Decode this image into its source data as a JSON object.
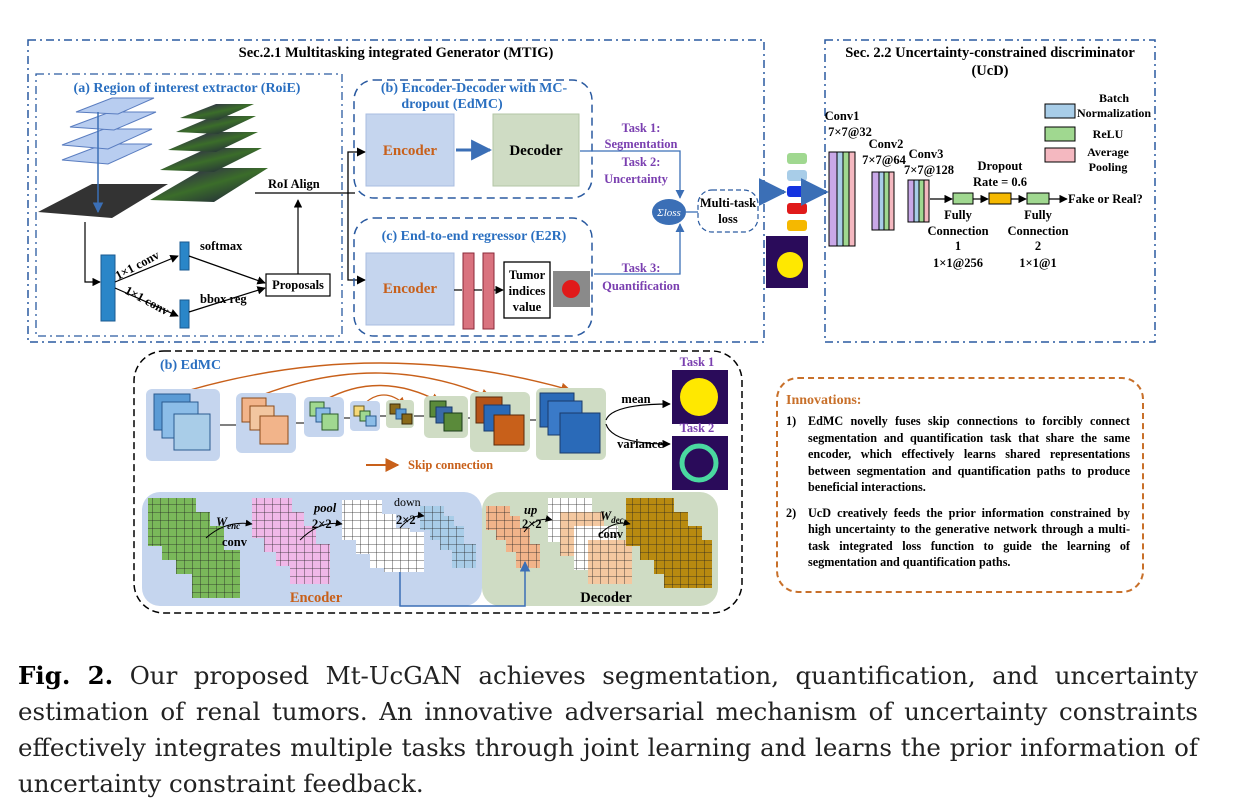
{
  "mtig": {
    "title": "Sec.2.1 Multitasking integrated Generator (MTIG)",
    "roie_title": "(a) Region of interest extractor (RoiE)",
    "roi_align": "RoI Align",
    "conv_top": "1×1 conv",
    "conv_bottom": "1×1 conv",
    "softmax": "softmax",
    "bbox_reg": "bbox reg",
    "proposals": "Proposals",
    "edmc_title_line1": "(b) Encoder-Decoder with MC-",
    "edmc_title_line2": "dropout (EdMC)",
    "encoder": "Encoder",
    "decoder": "Decoder",
    "task1": "Task 1:",
    "segmentation": "Segmentation",
    "task2": "Task 2:",
    "uncertainty": "Uncertainty",
    "e2r_title": "(c) End-to-end regressor (E2R)",
    "encoder2": "Encoder",
    "tumor_line1": "Tumor",
    "tumor_line2": "indices",
    "tumor_line3": "value",
    "task3": "Task 3:",
    "quantification": "Quantification",
    "sigma_loss": "Σloss",
    "multitask_line1": "Multi-task",
    "multitask_line2": "loss"
  },
  "ucd": {
    "title_line1": "Sec. 2.2 Uncertainty-constrained discriminator",
    "title_line2": "(UcD)",
    "conv1": "Conv1",
    "conv1_spec": "7×7@32",
    "conv2": "Conv2",
    "conv2_spec": "7×7@64",
    "conv3": "Conv3",
    "conv3_spec": "7×7@128",
    "dropout": "Dropout",
    "dropout_rate": "Rate = 0.6",
    "fc1_line1": "Fully",
    "fc1_line2": "Connection",
    "fc1_line3": "1",
    "fc1_spec": "1×1@256",
    "fc2_line1": "Fully",
    "fc2_line2": "Connection",
    "fc2_line3": "2",
    "fc2_spec": "1×1@1",
    "output": "Fake or Real?",
    "legend": [
      {
        "label_line1": "Batch",
        "label_line2": "Normalization",
        "color": "#a8cde8"
      },
      {
        "label_line1": "ReLU",
        "label_line2": "",
        "color": "#a0d890"
      },
      {
        "label_line1": "Average",
        "label_line2": "Pooling",
        "color": "#f4b8c0"
      }
    ]
  },
  "edmc_detail": {
    "title": "(b) EdMC",
    "task1": "Task 1",
    "task2": "Task 2",
    "mean": "mean",
    "variance": "variance",
    "skip": "Skip connection",
    "w_enc": "W",
    "w_enc_sub": "enc",
    "conv": "conv",
    "pool": "pool",
    "pool_size": "2×2",
    "down": "down",
    "down_size": "2×2",
    "up": "up",
    "up_size": "2×2",
    "w_dec": "W",
    "w_dec_sub": "dec",
    "conv2": "conv",
    "encoder": "Encoder",
    "decoder": "Decoder"
  },
  "innovations": {
    "title": "Innovations:",
    "items": [
      {
        "num": "1)",
        "text": "EdMC novelly fuses skip connections to forcibly connect segmentation and quantification task that share the same encoder, which effectively learns shared representations between segmentation and quantification paths to produce beneficial interactions."
      },
      {
        "num": "2)",
        "text": "UcD creatively feeds the prior information constrained by high uncertainty to the generative network through a multi-task integrated loss function to guide the learning of segmentation and quantification paths."
      }
    ]
  },
  "caption": {
    "label": "Fig. 2.",
    "text": "Our proposed Mt-UcGAN achieves segmentation, quantification, and uncertainty estimation of renal tumors. An innovative adversarial mechanism of uncertainty constraints effectively integrates multiple tasks through joint learning and learns the prior information of uncertainty constraint feedback."
  }
}
